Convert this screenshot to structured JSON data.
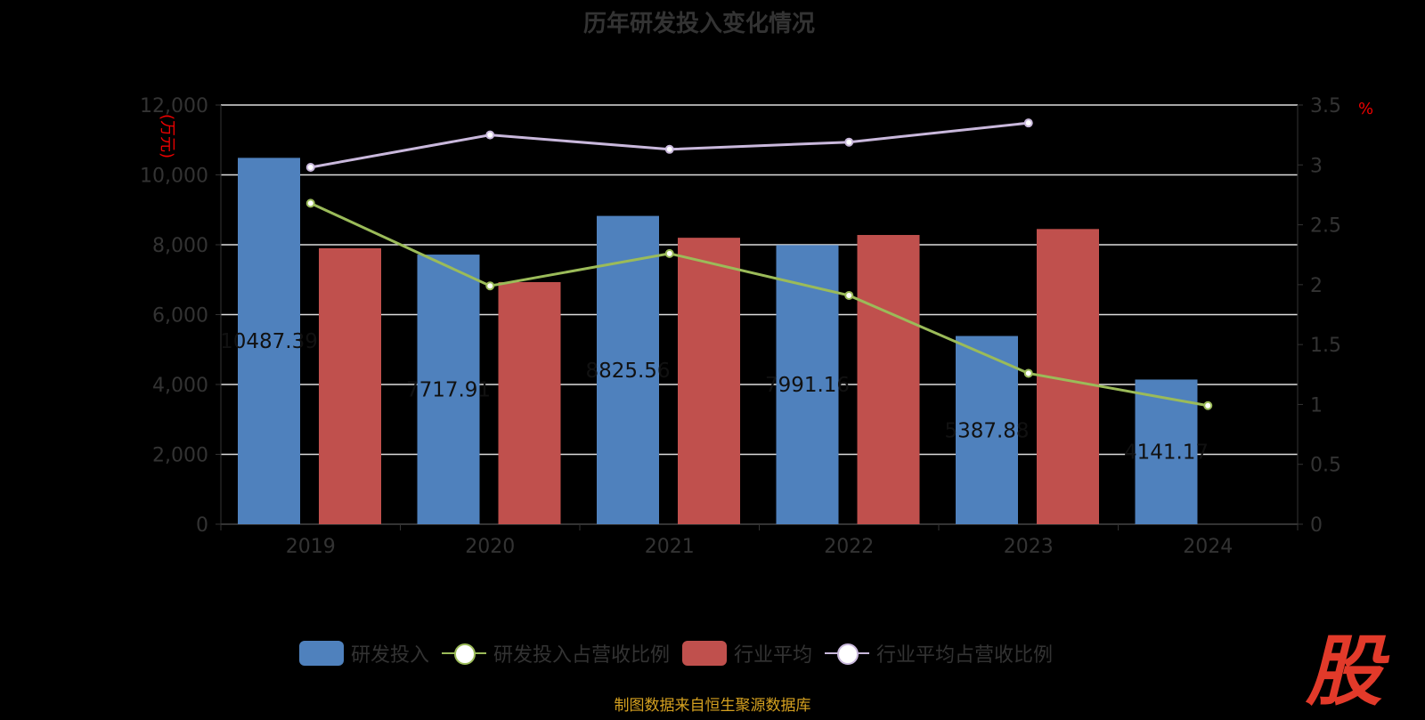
{
  "chart_data": {
    "type": "bar",
    "title": "历年研发投入变化情况",
    "categories": [
      "2019",
      "2020",
      "2021",
      "2022",
      "2023",
      "2024"
    ],
    "ylabel_left": "(万元)",
    "ylabel_right": "%",
    "ylim_left": [
      0,
      12000
    ],
    "yticks_left": [
      "0",
      "2,000",
      "4,000",
      "6,000",
      "8,000",
      "10,000",
      "12,000"
    ],
    "ylim_right": [
      0,
      3.5
    ],
    "yticks_right": [
      "0",
      "0.5",
      "1",
      "1.5",
      "2",
      "2.5",
      "3",
      "3.5"
    ],
    "grid": true,
    "legend_position": "bottom",
    "series": [
      {
        "name": "研发投入",
        "type": "bar",
        "axis": "left",
        "color": "#4f81bd",
        "values": [
          10487.39,
          7717.91,
          8825.56,
          7991.16,
          5387.88,
          4141.17
        ],
        "labels": [
          "10487.39",
          "7717.91",
          "8825.56",
          "7991.16",
          "5387.88",
          "4141.17"
        ]
      },
      {
        "name": "研发投入占营收比例",
        "type": "line",
        "axis": "right",
        "color": "#9bbb59",
        "values": [
          2.68,
          1.99,
          2.26,
          1.91,
          1.26,
          0.99
        ]
      },
      {
        "name": "行业平均",
        "type": "bar",
        "axis": "left",
        "color": "#c0504d",
        "values": [
          7900,
          6930,
          8200,
          8280,
          8450,
          null
        ]
      },
      {
        "name": "行业平均占营收比例",
        "type": "line",
        "axis": "right",
        "color": "#c9b8dc",
        "values": [
          2.98,
          3.25,
          3.13,
          3.19,
          3.35,
          null
        ]
      }
    ]
  },
  "source": "制图数据来自恒生聚源数据库",
  "logo_text": "股"
}
